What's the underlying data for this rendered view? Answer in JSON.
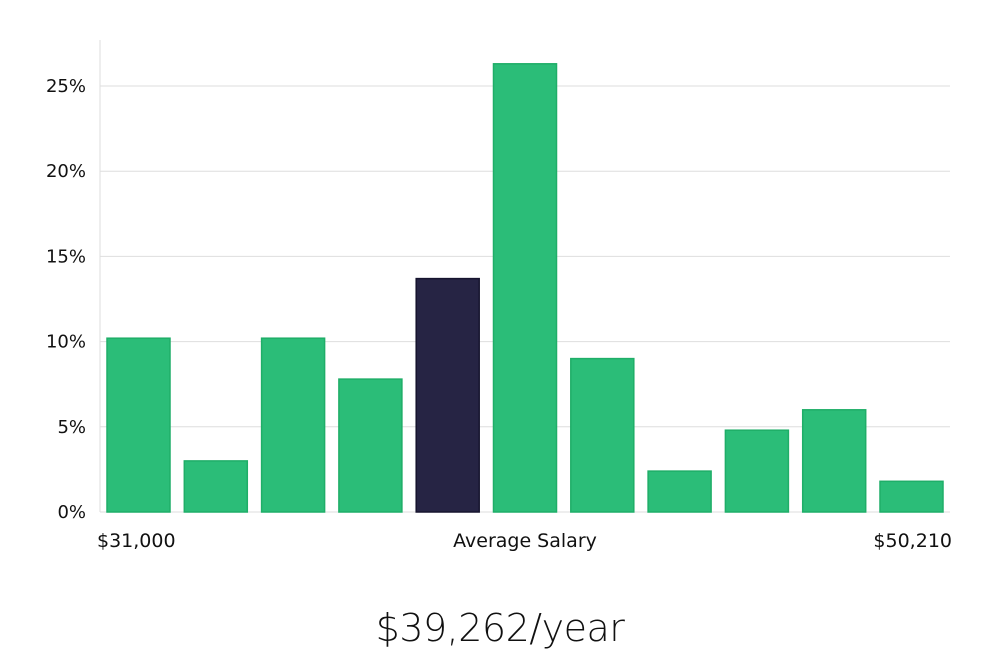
{
  "chart_data": {
    "type": "bar",
    "values": [
      10.2,
      3.0,
      10.2,
      7.8,
      13.7,
      26.3,
      9.0,
      2.4,
      4.8,
      6.0,
      1.8
    ],
    "highlight_index": 4,
    "ylim": [
      0,
      27
    ],
    "yticks": [
      0,
      5,
      10,
      15,
      20,
      25
    ],
    "ytick_labels": [
      "0%",
      "5%",
      "10%",
      "15%",
      "20%",
      "25%"
    ],
    "x_labels": {
      "left": "$31,000",
      "center": "Average Salary",
      "right": "$50,210"
    },
    "grid": true,
    "colors": {
      "bar": "#2bbd78",
      "bar_stroke": "#1fae68",
      "highlight": "#262444",
      "grid": "#dedede"
    }
  },
  "headline": "$39,262/year"
}
